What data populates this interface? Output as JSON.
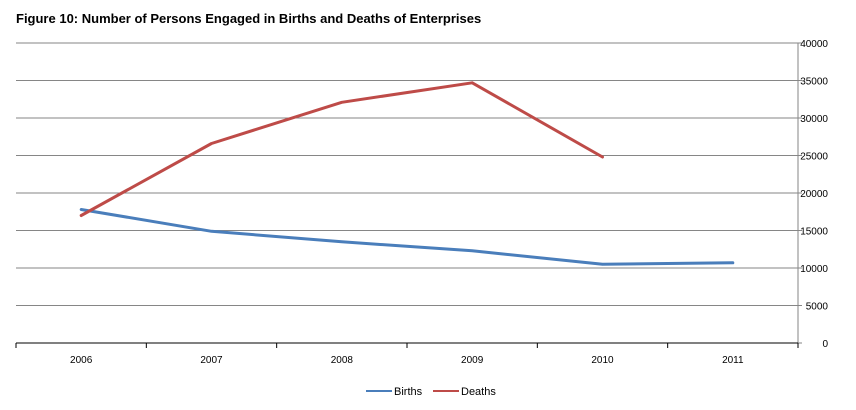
{
  "chart_data": {
    "type": "line",
    "title": "Figure 10: Number of Persons Engaged in Births and Deaths of Enterprises",
    "categories": [
      "2006",
      "2007",
      "2008",
      "2009",
      "2010",
      "2011"
    ],
    "series": [
      {
        "name": "Births",
        "color": "#4a7ebb",
        "values": [
          17800,
          14900,
          13500,
          12300,
          10500,
          10700
        ]
      },
      {
        "name": "Deaths",
        "color": "#be4b48",
        "values": [
          17000,
          26600,
          32100,
          34700,
          24800,
          null
        ]
      }
    ],
    "ylim": [
      0,
      40000
    ],
    "yticks": [
      0,
      5000,
      10000,
      15000,
      20000,
      25000,
      30000,
      35000,
      40000
    ],
    "y_axis_side": "right",
    "grid": true,
    "legend_position": "bottom"
  }
}
